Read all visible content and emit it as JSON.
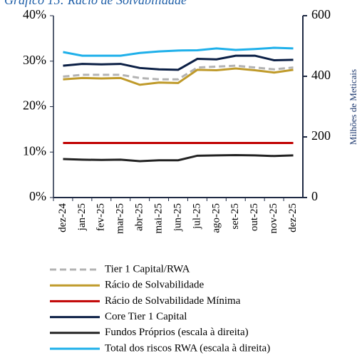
{
  "chart_data": {
    "type": "line",
    "title": "Gráfico 15: Rácio de Solvabilidade",
    "y2_label": "Milhões de Meticais",
    "categories": [
      "dez-24",
      "jan-25",
      "fev-25",
      "mar-25",
      "abr-25",
      "mai-25",
      "jun-25",
      "jul-25",
      "ago-25",
      "set-25",
      "out-25",
      "nov-25",
      "dez-25"
    ],
    "ylim": [
      0,
      40
    ],
    "yticks": [
      {
        "value": 0,
        "label": "0%"
      },
      {
        "value": 10,
        "label": "10%"
      },
      {
        "value": 20,
        "label": "20%"
      },
      {
        "value": 30,
        "label": "30%"
      },
      {
        "value": 40,
        "label": "40%"
      }
    ],
    "y2lim": [
      0,
      600
    ],
    "y2ticks": [
      0,
      200,
      400,
      600
    ],
    "legend": "bottom",
    "series": [
      {
        "name": "Tier 1 Capital/RWA",
        "color": "#b3b3b3",
        "style": "dashed",
        "values": [
          26.6,
          27.0,
          27.0,
          27.0,
          26.3,
          26.0,
          26.0,
          28.6,
          28.8,
          29.0,
          28.6,
          28.2,
          28.6
        ]
      },
      {
        "name": "Rácio de Solvabilidade",
        "color": "#bf9a2a",
        "values": [
          26.0,
          26.3,
          26.2,
          26.3,
          24.8,
          25.3,
          25.2,
          28.1,
          28.0,
          28.4,
          28.0,
          27.5,
          28.1
        ]
      },
      {
        "name": "Rácio de Solvabilidade Mínima",
        "color": "#c00000",
        "values": [
          12,
          12,
          12,
          12,
          12,
          12,
          12,
          12,
          12,
          12,
          12,
          12,
          12
        ]
      },
      {
        "name": "Core Tier 1 Capital",
        "color": "#0b1f45",
        "values": [
          29.0,
          29.4,
          29.3,
          29.4,
          28.5,
          28.2,
          28.1,
          30.5,
          30.4,
          31.2,
          31.2,
          30.2,
          30.3
        ]
      },
      {
        "name": "Fundos Próprios (escala à direita)",
        "color": "#222222",
        "axis": "y2",
        "values": [
          127,
          125,
          124,
          125,
          120,
          123,
          123,
          138,
          139,
          140,
          139,
          137,
          139
        ]
      },
      {
        "name": "Total dos riscos RWA (escala à direita)",
        "color": "#1fb0ea",
        "axis": "y2",
        "values": [
          480,
          468,
          468,
          468,
          477,
          482,
          485,
          486,
          492,
          487,
          490,
          494,
          492
        ]
      }
    ]
  }
}
